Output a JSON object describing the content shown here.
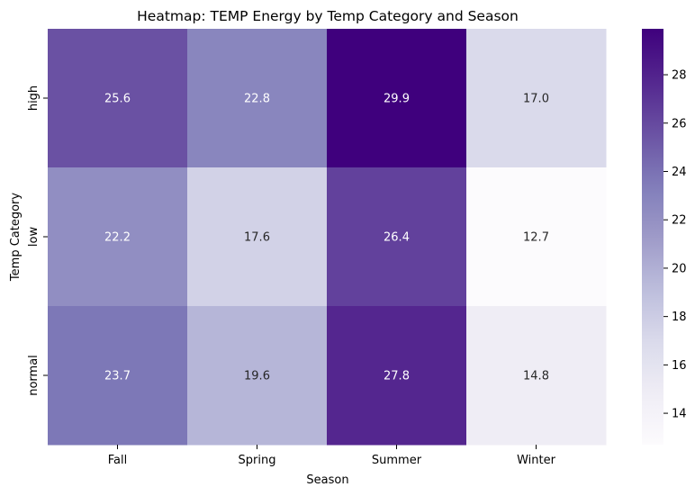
{
  "chart_data": {
    "type": "heatmap",
    "title": "Heatmap: TEMP Energy by Temp Category and Season",
    "xlabel": "Season",
    "ylabel": "Temp Category",
    "x_categories": [
      "Fall",
      "Spring",
      "Summer",
      "Winter"
    ],
    "y_categories": [
      "high",
      "low",
      "normal"
    ],
    "values": [
      [
        25.6,
        22.8,
        29.9,
        17.0
      ],
      [
        22.2,
        17.6,
        26.4,
        12.7
      ],
      [
        23.7,
        19.6,
        27.8,
        14.8
      ]
    ],
    "colorbar": {
      "colormap": "Purples",
      "vmin": 12.7,
      "vmax": 29.9,
      "ticks": [
        14,
        16,
        18,
        20,
        22,
        24,
        26,
        28
      ]
    },
    "annotation_format": "0.1f",
    "grid": false
  }
}
